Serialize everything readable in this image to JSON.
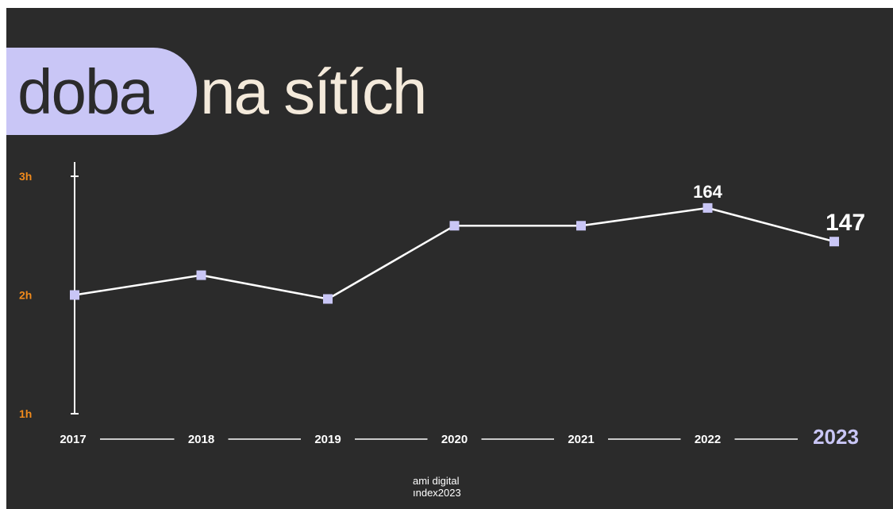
{
  "title": {
    "word1": "doba",
    "word2": "na sítích"
  },
  "footer": {
    "line1": "ami digital",
    "line2": "ındex2023"
  },
  "colors": {
    "background": "#2b2b2b",
    "accent": "#c9c6f6",
    "line": "#ffffff",
    "tick_label": "#f08a1c",
    "title_text": "#f4eadb"
  },
  "chart_data": {
    "type": "line",
    "title": "doba na sítích",
    "x": [
      "2017",
      "2018",
      "2019",
      "2020",
      "2021",
      "2022",
      "2023"
    ],
    "series": [
      {
        "values": [
          120,
          130,
          118,
          155,
          155,
          164,
          147
        ]
      }
    ],
    "y_ticks": [
      {
        "value": 60,
        "label": "1h"
      },
      {
        "value": 120,
        "label": "2h"
      },
      {
        "value": 180,
        "label": "3h"
      }
    ],
    "ylim": [
      60,
      180
    ],
    "data_labels": [
      {
        "index": 5,
        "text": "164"
      },
      {
        "index": 6,
        "text": "147"
      }
    ],
    "highlight_category": "2023",
    "grid": false,
    "legend": "none"
  }
}
